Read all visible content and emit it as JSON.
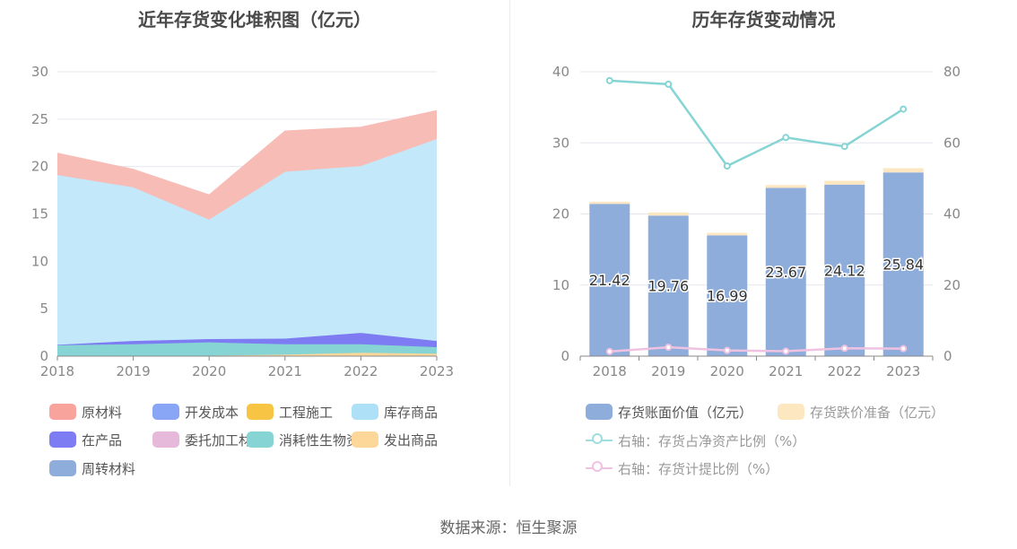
{
  "left_chart": {
    "title": "近年存货变化堆积图（亿元）",
    "legend": [
      {
        "label": "原材料",
        "color": "#f8a39b"
      },
      {
        "label": "开发成本",
        "color": "#88a6f5"
      },
      {
        "label": "工程施工",
        "color": "#f7c443"
      },
      {
        "label": "库存商品",
        "color": "#aee0f8"
      },
      {
        "label": "在产品",
        "color": "#7d7cf2"
      },
      {
        "label": "委托加工材料",
        "color": "#e6b9db"
      },
      {
        "label": "消耗性生物资产",
        "color": "#87d4d4"
      },
      {
        "label": "发出商品",
        "color": "#fdd79a"
      },
      {
        "label": "周转材料",
        "color": "#8eaddb"
      }
    ]
  },
  "right_chart": {
    "title": "历年存货变动情况",
    "legend": [
      {
        "label": "存货账面价值（亿元）",
        "color": "#8eaddb",
        "kind": "bar"
      },
      {
        "label": "存货跌价准备（亿元）",
        "color": "#fde7c1",
        "kind": "bar"
      },
      {
        "label": "右轴：存货占净资产比例（%）",
        "color": "#9fdede",
        "kind": "line"
      },
      {
        "label": "右轴：存货计提比例（%）",
        "color": "#f0c2e2",
        "kind": "line"
      }
    ]
  },
  "source": "数据来源：恒生聚源",
  "chart_data": [
    {
      "type": "area",
      "title": "近年存货变化堆积图（亿元）",
      "stacked": true,
      "x": [
        "2018",
        "2019",
        "2020",
        "2021",
        "2022",
        "2023"
      ],
      "ylim": [
        0,
        30
      ],
      "yticks": [
        0,
        5,
        10,
        15,
        20,
        25,
        30
      ],
      "series": [
        {
          "name": "周转材料",
          "color": "#8eaddb",
          "values": [
            0.05,
            0.05,
            0.05,
            0.05,
            0.05,
            0.05
          ]
        },
        {
          "name": "发出商品",
          "color": "#fdd79a",
          "values": [
            0.0,
            0.0,
            0.0,
            0.1,
            0.3,
            0.2
          ]
        },
        {
          "name": "消耗性生物资产",
          "color": "#87d4d4",
          "values": [
            1.1,
            1.2,
            1.4,
            1.1,
            0.9,
            0.7
          ]
        },
        {
          "name": "委托加工材料",
          "color": "#e6b9db",
          "values": [
            0.0,
            0.0,
            0.0,
            0.0,
            0.0,
            0.0
          ]
        },
        {
          "name": "在产品",
          "color": "#7d7cf2",
          "values": [
            0.05,
            0.35,
            0.35,
            0.6,
            1.2,
            0.65
          ]
        },
        {
          "name": "库存商品",
          "color": "#c2e8fa",
          "values": [
            17.9,
            16.2,
            12.6,
            17.6,
            17.6,
            21.3
          ]
        },
        {
          "name": "工程施工",
          "color": "#f7c443",
          "values": [
            0.0,
            0.0,
            0.0,
            0.0,
            0.0,
            0.0
          ]
        },
        {
          "name": "开发成本",
          "color": "#88a6f5",
          "values": [
            0.0,
            0.0,
            0.0,
            0.0,
            0.0,
            0.0
          ]
        },
        {
          "name": "原材料",
          "color": "#f8bcb6",
          "values": [
            2.3,
            1.9,
            2.6,
            4.3,
            4.1,
            3.0
          ]
        }
      ]
    },
    {
      "type": "bar",
      "title": "历年存货变动情况",
      "stacked": true,
      "categories": [
        "2018",
        "2019",
        "2020",
        "2021",
        "2022",
        "2023"
      ],
      "ylim": [
        0,
        40
      ],
      "yticks": [
        0,
        10,
        20,
        30,
        40
      ],
      "y2lim": [
        0,
        80
      ],
      "y2ticks": [
        0,
        20,
        40,
        60,
        80
      ],
      "series": [
        {
          "name": "存货账面价值（亿元）",
          "color": "#8eaddb",
          "values": [
            21.42,
            19.76,
            16.99,
            23.67,
            24.12,
            25.84
          ],
          "data_labels": [
            "21.42",
            "19.76",
            "16.99",
            "23.67",
            "24.12",
            "25.84"
          ]
        },
        {
          "name": "存货跌价准备（亿元）",
          "color": "#fde7c1",
          "values": [
            0.3,
            0.45,
            0.35,
            0.4,
            0.55,
            0.6
          ]
        },
        {
          "name": "右轴：存货占净资产比例（%）",
          "type": "line",
          "axis": "right",
          "color": "#87d4d4",
          "values": [
            77.5,
            76.5,
            53.5,
            61.5,
            59.0,
            69.5
          ]
        },
        {
          "name": "右轴：存货计提比例（%）",
          "type": "line",
          "axis": "right",
          "color": "#f0c2e2",
          "values": [
            1.3,
            2.5,
            1.6,
            1.4,
            2.2,
            2.1
          ]
        }
      ]
    }
  ]
}
